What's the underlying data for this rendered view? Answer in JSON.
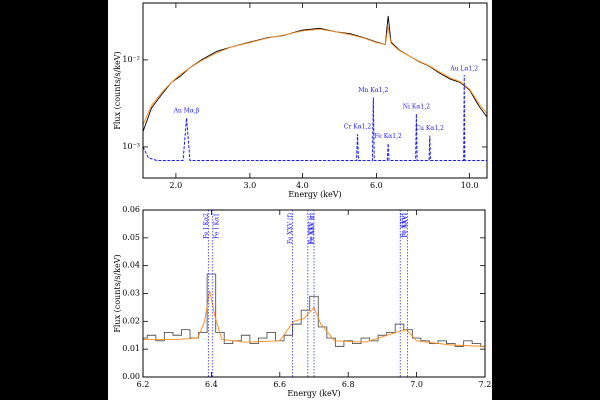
{
  "chart_data": [
    {
      "type": "line",
      "xlabel": "Energy (keV)",
      "ylabel": "Flux (counts/s/keV)",
      "xlog": true,
      "ylog": true,
      "xlim": [
        1.67,
        11.0
      ],
      "ylim": [
        0.00044,
        0.045
      ],
      "xticks": [
        {
          "value": 2,
          "label": "2.0"
        },
        {
          "value": 3,
          "label": "3.0"
        },
        {
          "value": 4,
          "label": "4.0"
        },
        {
          "value": 6,
          "label": "6.0"
        },
        {
          "value": 10,
          "label": "10.0"
        }
      ],
      "yticks": [
        {
          "value": 0.001,
          "label": "10⁻³"
        },
        {
          "value": 0.01,
          "label": "10⁻²"
        }
      ],
      "series": [
        {
          "color": "#000000",
          "style": "solid",
          "x": [
            1.67,
            1.75,
            1.85,
            1.95,
            2.05,
            2.15,
            2.3,
            2.5,
            2.7,
            3.0,
            3.3,
            3.6,
            4.0,
            4.4,
            4.8,
            5.2,
            5.6,
            6.0,
            6.3,
            6.4,
            6.5,
            6.8,
            7.2,
            7.6,
            8.0,
            8.5,
            9.0,
            9.5,
            10.0,
            10.5,
            11.0
          ],
          "values": [
            0.0015,
            0.0028,
            0.004,
            0.0055,
            0.0065,
            0.008,
            0.01,
            0.0125,
            0.014,
            0.016,
            0.018,
            0.019,
            0.022,
            0.023,
            0.021,
            0.02,
            0.018,
            0.016,
            0.015,
            0.032,
            0.016,
            0.013,
            0.011,
            0.0095,
            0.0085,
            0.007,
            0.006,
            0.0055,
            0.0045,
            0.003,
            0.0022
          ]
        },
        {
          "color": "#ff8c1a",
          "style": "solid",
          "x": [
            1.67,
            1.75,
            1.85,
            1.95,
            2.05,
            2.15,
            2.3,
            2.5,
            2.7,
            3.0,
            3.3,
            3.6,
            4.0,
            4.4,
            4.8,
            5.2,
            5.6,
            6.0,
            6.3,
            6.4,
            6.5,
            6.8,
            7.2,
            7.6,
            8.0,
            8.5,
            9.0,
            9.5,
            10.0,
            10.5,
            11.0
          ],
          "values": [
            0.0018,
            0.003,
            0.0042,
            0.0055,
            0.0068,
            0.008,
            0.0098,
            0.012,
            0.014,
            0.0158,
            0.0178,
            0.0192,
            0.0215,
            0.0225,
            0.021,
            0.0195,
            0.0178,
            0.0158,
            0.015,
            0.024,
            0.0155,
            0.0128,
            0.011,
            0.0096,
            0.0086,
            0.0072,
            0.0062,
            0.0056,
            0.0046,
            0.0032,
            0.0024
          ]
        },
        {
          "color": "#1a1aff",
          "style": "dashed",
          "x": [
            1.67,
            1.72,
            1.8,
            2.08,
            2.12,
            2.16,
            5.38,
            5.41,
            5.44,
            5.87,
            5.9,
            5.93,
            6.37,
            6.4,
            6.43,
            7.44,
            7.47,
            7.5,
            8.01,
            8.04,
            8.07,
            9.68,
            9.71,
            9.74,
            11.0
          ],
          "values": [
            0.001,
            0.00075,
            0.0007,
            0.0007,
            0.00215,
            0.0007,
            0.0007,
            0.0014,
            0.0007,
            0.0007,
            0.0037,
            0.0007,
            0.0007,
            0.0011,
            0.0007,
            0.0007,
            0.0024,
            0.0007,
            0.0007,
            0.00135,
            0.0007,
            0.0007,
            0.0067,
            0.0007,
            0.0007
          ]
        }
      ],
      "annotations": [
        {
          "text": "Au Mα,β",
          "x": 2.12
        },
        {
          "text": "Cr Kα1,2",
          "x": 5.41
        },
        {
          "text": "Mn Kα1,2",
          "x": 5.9
        },
        {
          "text": "Fe Kα1,2",
          "x": 6.4
        },
        {
          "text": "Ni Kα1,2",
          "x": 7.47
        },
        {
          "text": "Cu Kα1,2",
          "x": 8.04
        },
        {
          "text": "Au Lα1,2",
          "x": 9.71
        }
      ]
    },
    {
      "type": "line",
      "xlabel": "Energy (keV)",
      "ylabel": "Flux (counts/s/keV)",
      "xlog": false,
      "ylog": false,
      "xlim": [
        6.2,
        7.2
      ],
      "ylim": [
        0,
        0.06
      ],
      "xticks": [
        6.2,
        6.4,
        6.6,
        6.8,
        {
          "value": 7,
          "label": "7.0"
        },
        7.2
      ],
      "yticks": [
        {
          "value": 0,
          "label": "0.00"
        },
        0.01,
        0.02,
        0.03,
        0.04,
        0.05,
        0.06
      ],
      "series": [
        {
          "color": "#555555",
          "style": "step",
          "x": [
            6.2,
            6.225,
            6.25,
            6.275,
            6.3,
            6.325,
            6.35,
            6.375,
            6.4,
            6.425,
            6.45,
            6.475,
            6.5,
            6.525,
            6.55,
            6.575,
            6.6,
            6.625,
            6.65,
            6.675,
            6.7,
            6.725,
            6.75,
            6.775,
            6.8,
            6.825,
            6.85,
            6.875,
            6.9,
            6.925,
            6.95,
            6.975,
            7.0,
            7.025,
            7.05,
            7.075,
            7.1,
            7.125,
            7.15,
            7.175,
            7.2
          ],
          "values": [
            0.014,
            0.015,
            0.013,
            0.016,
            0.015,
            0.017,
            0.014,
            0.016,
            0.037,
            0.016,
            0.012,
            0.013,
            0.015,
            0.012,
            0.014,
            0.016,
            0.013,
            0.015,
            0.019,
            0.024,
            0.029,
            0.018,
            0.014,
            0.011,
            0.013,
            0.012,
            0.014,
            0.013,
            0.015,
            0.016,
            0.019,
            0.017,
            0.014,
            0.013,
            0.012,
            0.013,
            0.012,
            0.011,
            0.013,
            0.012,
            0.011
          ]
        },
        {
          "color": "#ff8c1a",
          "style": "solid",
          "x": [
            6.2,
            6.3,
            6.36,
            6.38,
            6.395,
            6.41,
            6.43,
            6.5,
            6.6,
            6.64,
            6.67,
            6.7,
            6.72,
            6.76,
            6.85,
            6.94,
            6.97,
            7.0,
            7.1,
            7.2
          ],
          "values": [
            0.0135,
            0.0135,
            0.014,
            0.02,
            0.031,
            0.022,
            0.0135,
            0.0125,
            0.013,
            0.02,
            0.021,
            0.025,
            0.019,
            0.013,
            0.0125,
            0.016,
            0.017,
            0.013,
            0.0115,
            0.011
          ]
        }
      ],
      "annotations": [
        {
          "text": "Fe I Kα2",
          "x": 6.391
        },
        {
          "text": "Fe I Kα1",
          "x": 6.404
        },
        {
          "text": "Fe XXV (f)",
          "x": 6.637
        },
        {
          "text": "Fe XXV (i)",
          "x": 6.682
        },
        {
          "text": "Fe XXV (r)",
          "x": 6.7
        },
        {
          "text": "Fe XXVI",
          "x": 6.952
        },
        {
          "text": "Fe XXVI",
          "x": 6.973
        }
      ]
    }
  ]
}
